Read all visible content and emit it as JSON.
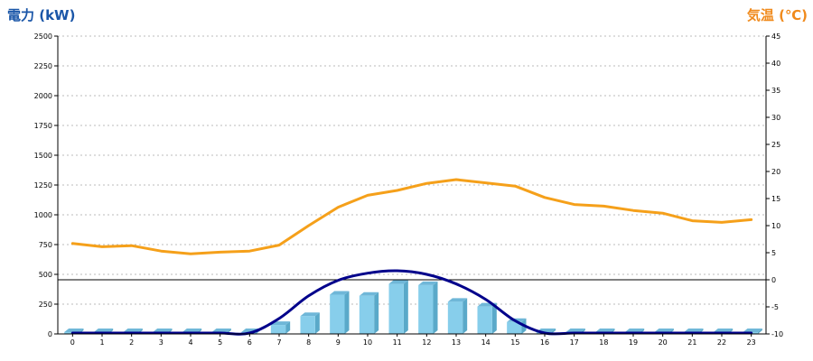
{
  "titles": {
    "left_axis": "電力 (kW)",
    "right_axis": "気温 (℃)"
  },
  "chart_data": {
    "type": "bar",
    "categories": [
      "0",
      "1",
      "2",
      "3",
      "4",
      "5",
      "6",
      "7",
      "8",
      "9",
      "10",
      "11",
      "12",
      "13",
      "14",
      "15",
      "16",
      "17",
      "18",
      "19",
      "20",
      "21",
      "22",
      "23"
    ],
    "y_left": {
      "label": "電力 (kW)",
      "ylim": [
        0,
        2500
      ],
      "ticks": [
        0,
        250,
        500,
        750,
        1000,
        1250,
        1500,
        1750,
        2000,
        2250,
        2500
      ]
    },
    "y_right": {
      "label": "気温 (℃)",
      "ylim": [
        -10,
        45
      ],
      "ticks": [
        -10,
        -5,
        0,
        5,
        10,
        15,
        20,
        25,
        30,
        35,
        40,
        45
      ]
    },
    "grid": true,
    "series": [
      {
        "kind": "bar",
        "axis": "left",
        "color": "#87ceeb",
        "side_color": "#5aa9c9",
        "top_color": "#6fb7d8",
        "values": [
          0,
          0,
          0,
          0,
          0,
          0,
          0,
          75,
          150,
          330,
          320,
          420,
          410,
          270,
          230,
          100,
          0,
          0,
          0,
          0,
          0,
          0,
          0,
          0
        ]
      },
      {
        "kind": "line",
        "axis": "left",
        "color": "#00008b",
        "values": [
          0,
          0,
          0,
          0,
          0,
          0,
          0,
          130,
          320,
          450,
          510,
          530,
          500,
          420,
          290,
          110,
          0,
          0,
          0,
          0,
          0,
          0,
          0,
          0
        ]
      },
      {
        "kind": "line",
        "axis": "right",
        "color": "#f5a01a",
        "values": [
          6.7,
          6.1,
          6.3,
          5.3,
          4.8,
          5.1,
          5.3,
          6.4,
          10.0,
          13.4,
          15.6,
          16.5,
          17.8,
          18.5,
          17.9,
          17.3,
          15.2,
          13.9,
          13.6,
          12.8,
          12.3,
          10.9,
          10.6,
          11.1
        ]
      }
    ]
  }
}
